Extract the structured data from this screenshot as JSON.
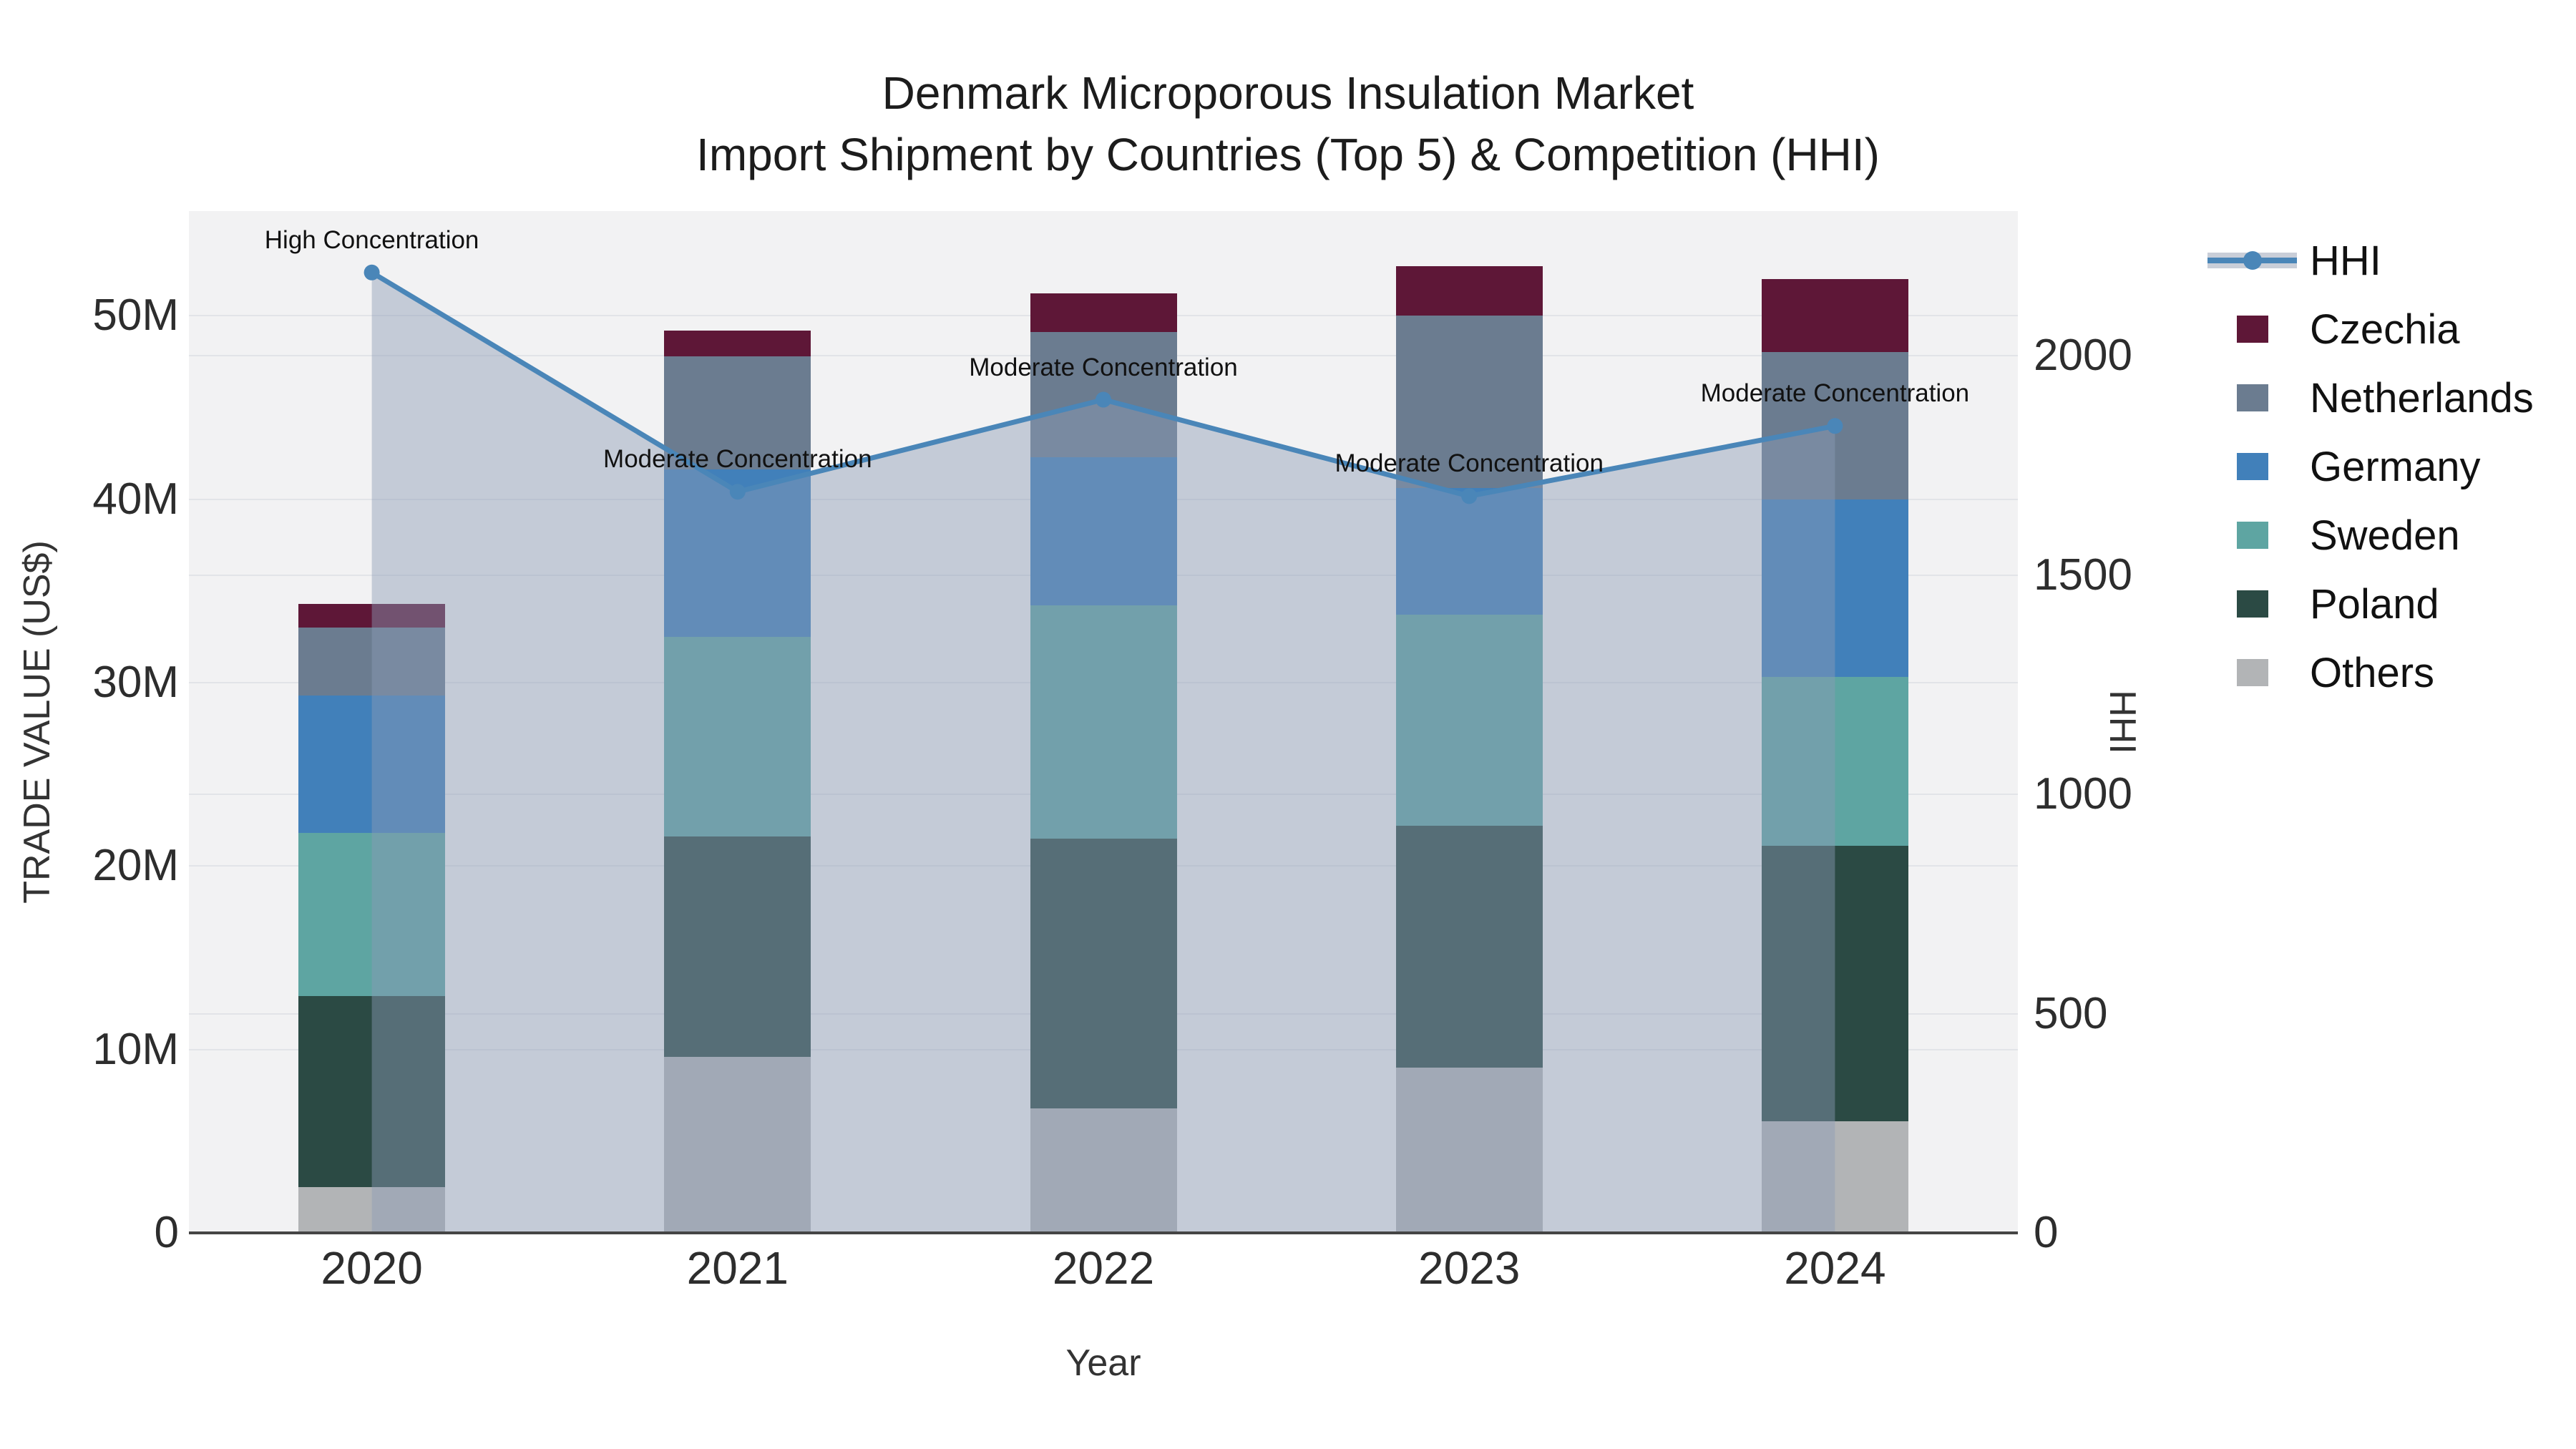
{
  "title": {
    "line1": "Denmark Microporous Insulation Market",
    "line2": "Import Shipment by Countries (Top 5) & Competition (HHI)"
  },
  "axes": {
    "x": {
      "title": "Year"
    },
    "y_left": {
      "title": "TRADE VALUE (US$)"
    },
    "y_right": {
      "title": "HHI"
    }
  },
  "colors": {
    "plot_bg": "#f2f2f3",
    "grid": "#e2e4e8",
    "axis_line": "#454545",
    "hhi_line": "#4a86b8",
    "hhi_fill": "rgba(140,155,182,0.45)",
    "hhi_band": "#c9ced8"
  },
  "chart_data": {
    "type": "combo: stacked bar (left axis) + line with area fill (right axis)",
    "categories": [
      "2020",
      "2021",
      "2022",
      "2023",
      "2024"
    ],
    "series": [
      {
        "name": "Others",
        "color": "#b2b4b6",
        "values": [
          2.5,
          9.6,
          6.8,
          9.0,
          6.1
        ]
      },
      {
        "name": "Poland",
        "color": "#2b4a44",
        "values": [
          10.4,
          12.0,
          14.7,
          13.2,
          15.0
        ]
      },
      {
        "name": "Sweden",
        "color": "#5ea5a2",
        "values": [
          8.9,
          10.9,
          12.7,
          11.5,
          9.2
        ]
      },
      {
        "name": "Germany",
        "color": "#4180ba",
        "values": [
          7.5,
          9.1,
          8.1,
          6.9,
          9.7
        ]
      },
      {
        "name": "Netherlands",
        "color": "#6b7c90",
        "values": [
          3.7,
          6.2,
          6.8,
          9.4,
          8.0
        ]
      },
      {
        "name": "Czechia",
        "color": "#5e1737",
        "values": [
          1.3,
          1.4,
          2.1,
          2.7,
          4.0
        ]
      }
    ],
    "stack_totals_musd": [
      34.3,
      49.2,
      51.2,
      52.7,
      52.0
    ],
    "line_series": {
      "name": "HHI",
      "axis": "right",
      "values": [
        2190,
        1690,
        1900,
        1680,
        1840
      ]
    },
    "annotations": [
      {
        "x": "2020",
        "text": "High Concentration"
      },
      {
        "x": "2021",
        "text": "Moderate Concentration"
      },
      {
        "x": "2022",
        "text": "Moderate Concentration"
      },
      {
        "x": "2023",
        "text": "Moderate Concentration"
      },
      {
        "x": "2024",
        "text": "Moderate Concentration"
      }
    ],
    "xlabel": "Year",
    "ylabel_left": "TRADE VALUE (US$)",
    "ylabel_right": "HHI",
    "y_left_ticks": [
      {
        "label": "0",
        "value": 0
      },
      {
        "label": "10M",
        "value": 10
      },
      {
        "label": "20M",
        "value": 20
      },
      {
        "label": "30M",
        "value": 30
      },
      {
        "label": "40M",
        "value": 40
      },
      {
        "label": "50M",
        "value": 50
      }
    ],
    "y_right_ticks": [
      {
        "label": "0",
        "value": 0
      },
      {
        "label": "500",
        "value": 500
      },
      {
        "label": "1000",
        "value": 1000
      },
      {
        "label": "1500",
        "value": 1500
      },
      {
        "label": "2000",
        "value": 2000
      }
    ],
    "y_left_max_musd": 55.7,
    "y_right_max": 2330,
    "grid": true,
    "legend_position": "right"
  },
  "legend": {
    "items": [
      {
        "label": "HHI",
        "type": "line",
        "color": "#4a86b8"
      },
      {
        "label": "Czechia",
        "type": "swatch",
        "color": "#5e1737"
      },
      {
        "label": "Netherlands",
        "type": "swatch",
        "color": "#6b7c90"
      },
      {
        "label": "Germany",
        "type": "swatch",
        "color": "#4180ba"
      },
      {
        "label": "Sweden",
        "type": "swatch",
        "color": "#5ea5a2"
      },
      {
        "label": "Poland",
        "type": "swatch",
        "color": "#2b4a44"
      },
      {
        "label": "Others",
        "type": "swatch",
        "color": "#b2b4b6"
      }
    ]
  }
}
